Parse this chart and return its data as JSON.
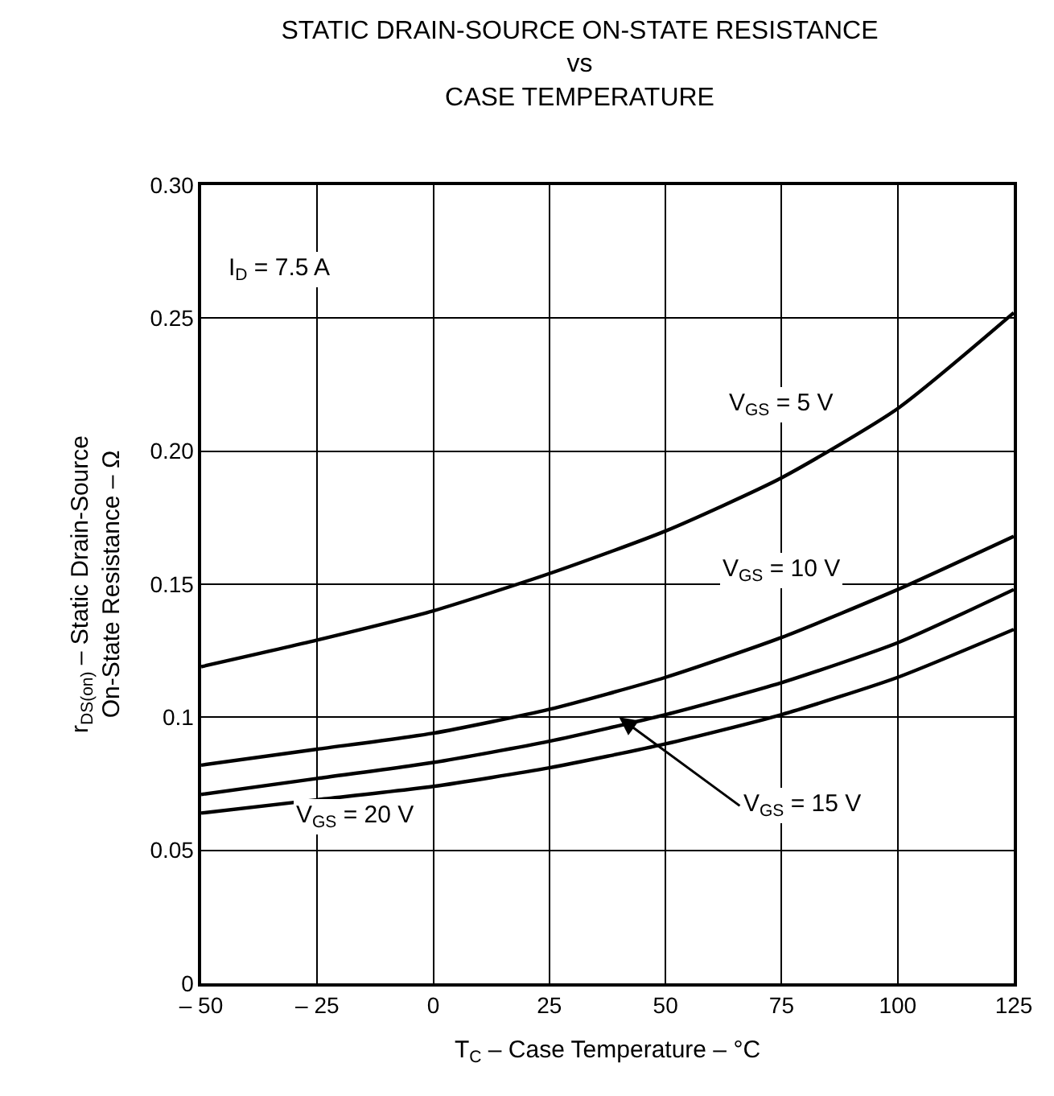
{
  "chart_data": {
    "type": "line",
    "title": "STATIC DRAIN-SOURCE ON-STATE RESISTANCE\nvs\nCASE TEMPERATURE",
    "xlabel": "T$_{C}$ – Case Temperature – °C",
    "ylabel": "r$_{DS(on)}$ – Static Drain-Source\nOn-State Resistance – Ω",
    "x": [
      -50,
      -25,
      0,
      25,
      50,
      75,
      100,
      125
    ],
    "series": [
      {
        "color": "#000000",
        "values": [
          0.119,
          0.129,
          0.14,
          0.154,
          0.17,
          0.19,
          0.216,
          0.252
        ]
      },
      {
        "color": "#000000",
        "values": [
          0.082,
          0.088,
          0.094,
          0.103,
          0.115,
          0.13,
          0.148,
          0.168
        ]
      },
      {
        "color": "#000000",
        "values": [
          0.071,
          0.077,
          0.083,
          0.091,
          0.101,
          0.113,
          0.128,
          0.148
        ]
      },
      {
        "color": "#000000",
        "values": [
          0.064,
          0.069,
          0.074,
          0.081,
          0.09,
          0.101,
          0.115,
          0.133
        ]
      }
    ],
    "xlim": [
      -50,
      125
    ],
    "ylim": [
      0,
      0.3
    ],
    "xticks": [
      {
        "value": -50,
        "label": "– 50"
      },
      {
        "value": -25,
        "label": "– 25"
      },
      0,
      25,
      50,
      75,
      100,
      125
    ],
    "yticks": [
      0,
      0.05,
      0.1,
      0.15,
      {
        "value": 0.2,
        "label": "0.20"
      },
      0.25,
      {
        "value": 0.3,
        "label": "0.30"
      }
    ],
    "grid": true,
    "marker": "none",
    "line_style": "solid",
    "annotations": [
      "I$_{D}$ = 7.5 A",
      "V$_{GS}$ = 5 V",
      "V$_{GS}$ = 10 V",
      {
        "text": "V$_{GS}$ = 15 V",
        "x": 40,
        "y": 0.1
      },
      "V$_{GS}$ = 20 V"
    ]
  }
}
